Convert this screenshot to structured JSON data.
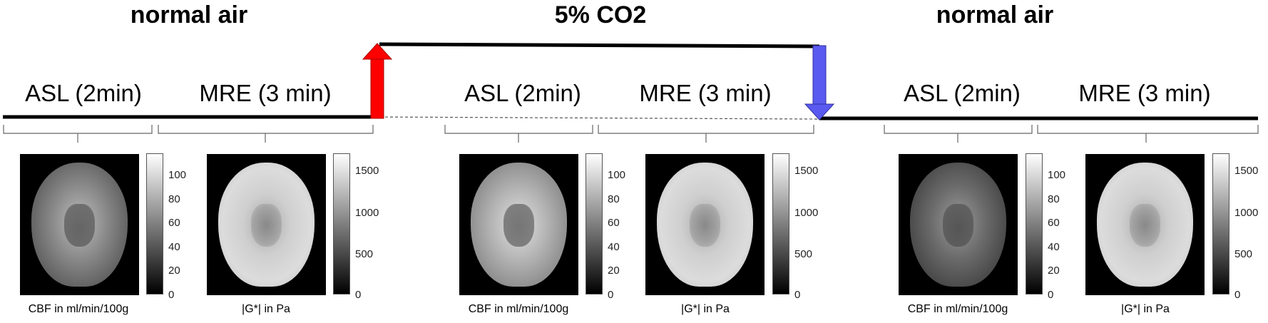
{
  "phases": [
    {
      "title": "normal air"
    },
    {
      "title": "5% CO2"
    },
    {
      "title": "normal air"
    }
  ],
  "sequence": {
    "asl_label": "ASL (2min)",
    "mre_label": "MRE (3 min)"
  },
  "captions": {
    "asl": "CBF in ml/min/100g",
    "mre": "|G*| in Pa"
  },
  "asl_colorbar_ticks": [
    "100",
    "80",
    "60",
    "40",
    "20",
    "0"
  ],
  "mre_colorbar_ticks": [
    "1500",
    "1000",
    "500",
    "0"
  ],
  "colors": {
    "gas_on_arrow": "#ff0000",
    "gas_off_arrow": "#5a5af0",
    "timeline": "#000000"
  }
}
